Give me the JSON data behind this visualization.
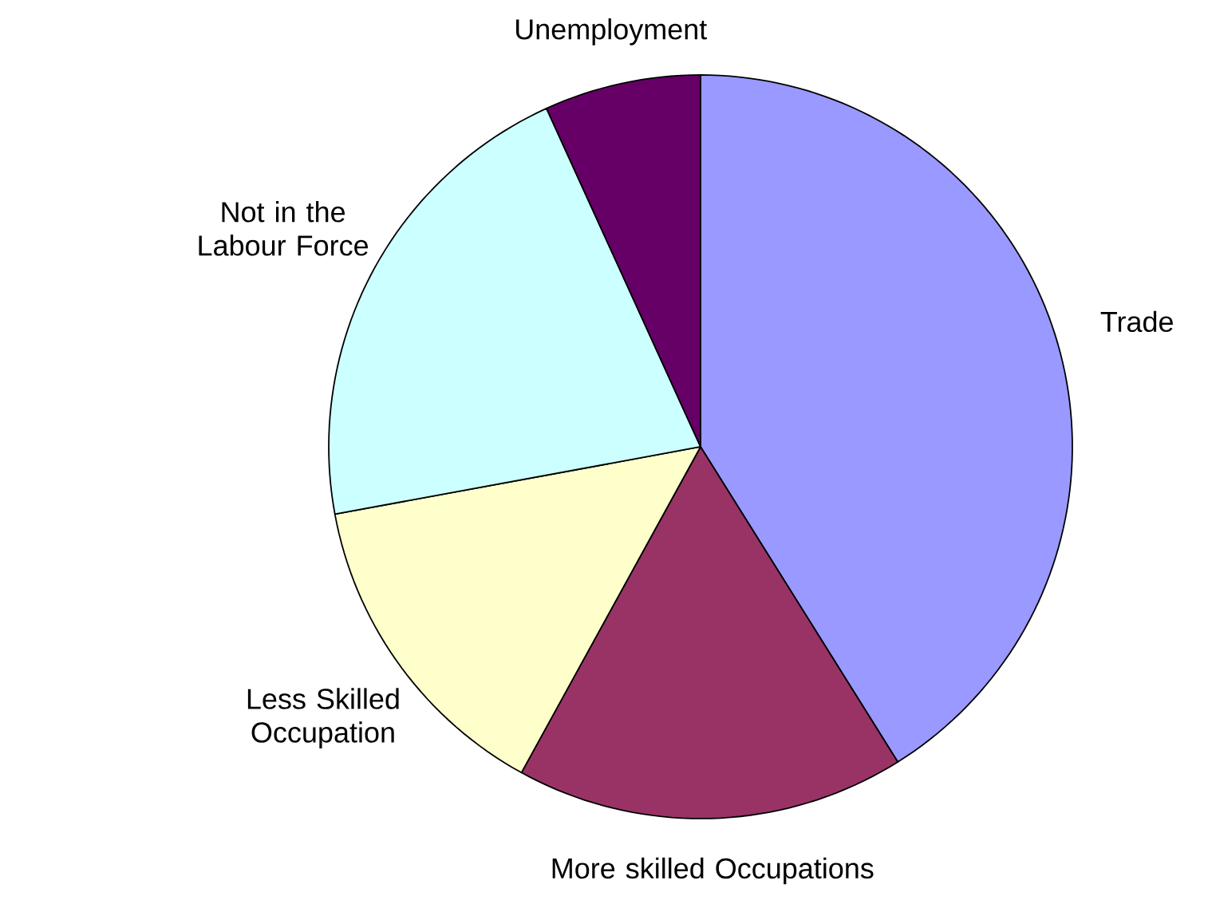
{
  "chart_data": {
    "type": "pie",
    "categories": [
      "Trade",
      "More skilled Occupations",
      "Less Skilled Occupation",
      "Not in the Labour Force",
      "Unemployment"
    ],
    "values": [
      41.1,
      16.9,
      14.1,
      21.1,
      6.8
    ],
    "colors": [
      "#9999ff",
      "#993366",
      "#ffffcc",
      "#ccffff",
      "#660066"
    ]
  }
}
